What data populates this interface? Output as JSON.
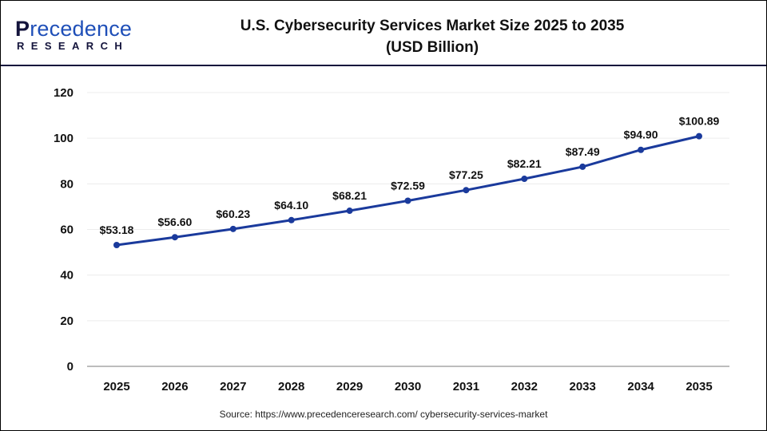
{
  "logo": {
    "brand": "Precedence",
    "sub": "RESEARCH"
  },
  "title_line1": "U.S. Cybersecurity Services Market Size 2025 to 2035",
  "title_line2": "(USD Billion)",
  "source": "Source: https://www.precedenceresearch.com/ cybersecurity-services-market",
  "chart_data": {
    "type": "line",
    "title": "U.S. Cybersecurity Services Market Size 2025 to 2035 (USD Billion)",
    "categories": [
      "2025",
      "2026",
      "2027",
      "2028",
      "2029",
      "2030",
      "2031",
      "2032",
      "2033",
      "2034",
      "2035"
    ],
    "values": [
      53.18,
      56.6,
      60.23,
      64.1,
      68.21,
      72.59,
      77.25,
      82.21,
      87.49,
      94.9,
      100.89
    ],
    "data_labels": [
      "$53.18",
      "$56.60",
      "$60.23",
      "$64.10",
      "$68.21",
      "$72.59",
      "$77.25",
      "$82.21",
      "$87.49",
      "$94.90",
      "$100.89"
    ],
    "ylim": [
      0,
      120
    ],
    "yticks": [
      "0",
      "20",
      "40",
      "60",
      "80",
      "100",
      "120"
    ],
    "grid": true,
    "line_color": "#1a3a9c",
    "xlabel": "",
    "ylabel": ""
  }
}
